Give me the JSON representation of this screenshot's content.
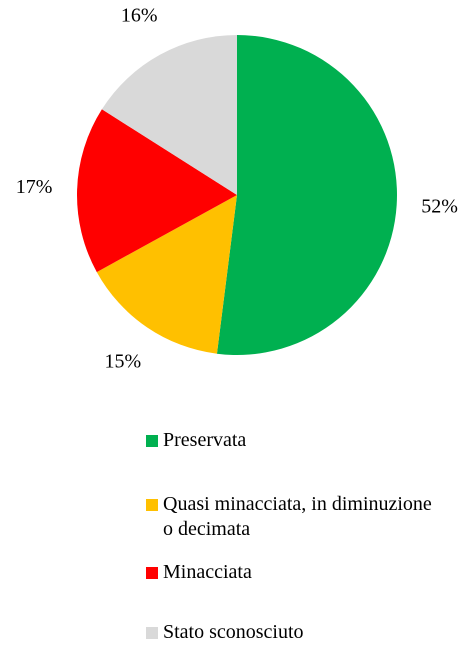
{
  "chart_data": {
    "type": "pie",
    "categories": [
      "Preservata",
      "Quasi minacciata, in diminuzione o decimata",
      "Minacciata",
      "Stato sconosciuto"
    ],
    "values": [
      52,
      15,
      17,
      16
    ],
    "value_labels": [
      "52%",
      "15%",
      "17%",
      "16%"
    ],
    "colors": [
      "#00b050",
      "#ffc000",
      "#ff0000",
      "#d9d9d9"
    ]
  }
}
